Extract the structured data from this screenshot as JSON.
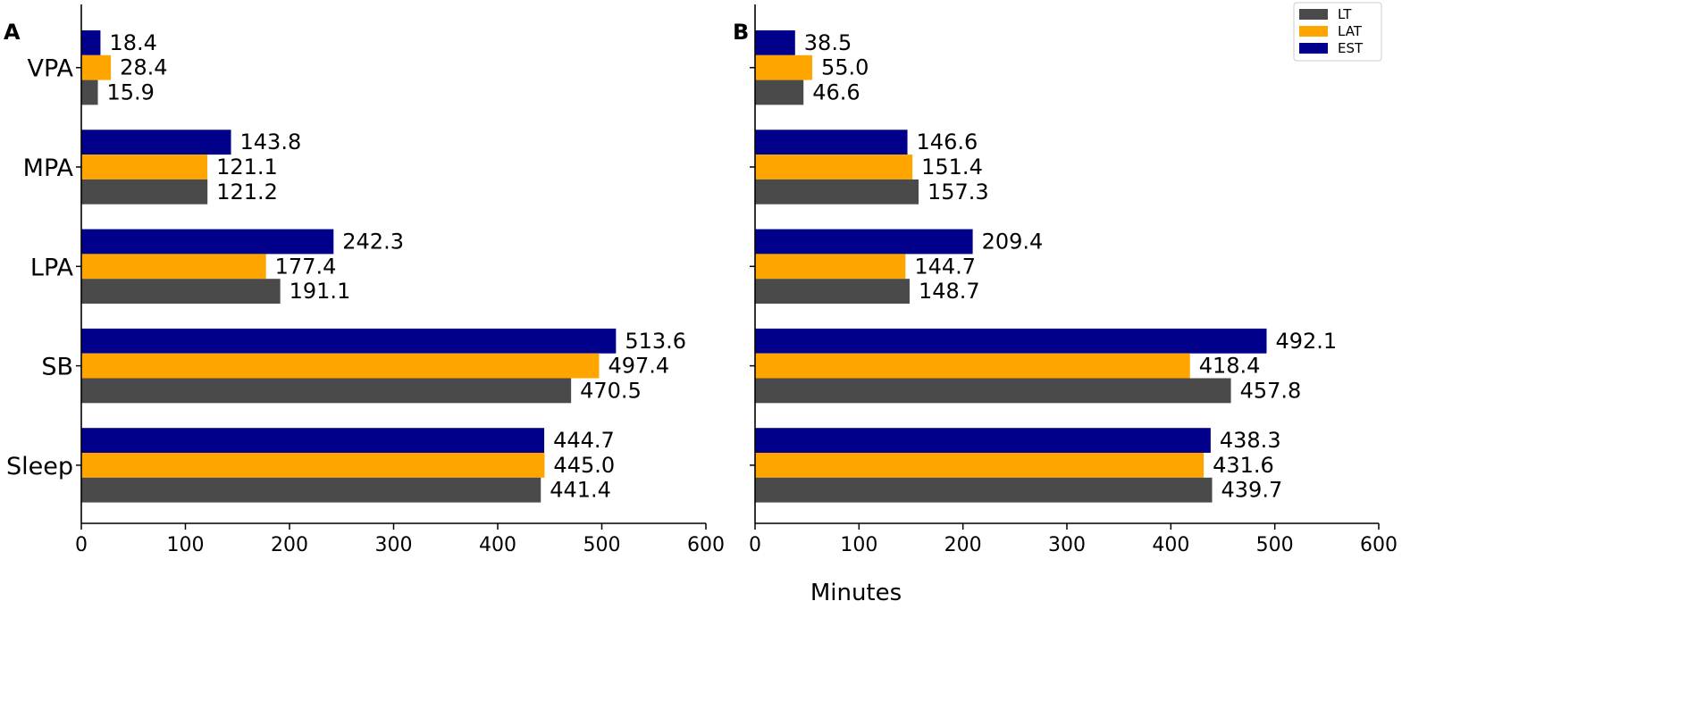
{
  "chart_data": {
    "type": "bar",
    "orientation": "horizontal",
    "xlabel": "Minutes",
    "xlim": [
      0,
      600
    ],
    "xticks": [
      "0",
      "100",
      "200",
      "300",
      "400",
      "500",
      "600"
    ],
    "categories": [
      "VPA",
      "MPA",
      "LPA",
      "SB",
      "Sleep"
    ],
    "legend": {
      "placement": "top-right",
      "entries": [
        {
          "name": "LT",
          "color": "#4a4a4a"
        },
        {
          "name": "LAT",
          "color": "#ffa500"
        },
        {
          "name": "EST",
          "color": "#00008b"
        }
      ]
    },
    "panels": [
      {
        "label": "A",
        "series": [
          {
            "name": "EST",
            "color": "#00008b",
            "values": [
              18.4,
              143.8,
              242.3,
              513.6,
              444.7
            ],
            "labels": [
              "18.4",
              "143.8",
              "242.3",
              "513.6",
              "444.7"
            ]
          },
          {
            "name": "LAT",
            "color": "#ffa500",
            "values": [
              28.4,
              121.1,
              177.4,
              497.4,
              445.0
            ],
            "labels": [
              "28.4",
              "121.1",
              "177.4",
              "497.4",
              "445.0"
            ]
          },
          {
            "name": "LT",
            "color": "#4a4a4a",
            "values": [
              15.9,
              121.2,
              191.1,
              470.5,
              441.4
            ],
            "labels": [
              "15.9",
              "121.2",
              "191.1",
              "470.5",
              "441.4"
            ]
          }
        ]
      },
      {
        "label": "B",
        "series": [
          {
            "name": "EST",
            "color": "#00008b",
            "values": [
              38.5,
              146.6,
              209.4,
              492.1,
              438.3
            ],
            "labels": [
              "38.5",
              "146.6",
              "209.4",
              "492.1",
              "438.3"
            ]
          },
          {
            "name": "LAT",
            "color": "#ffa500",
            "values": [
              55.0,
              151.4,
              144.7,
              418.4,
              431.6
            ],
            "labels": [
              "55.0",
              "151.4",
              "144.7",
              "418.4",
              "431.6"
            ]
          },
          {
            "name": "LT",
            "color": "#4a4a4a",
            "values": [
              46.6,
              157.3,
              148.7,
              457.8,
              439.7
            ],
            "labels": [
              "46.6",
              "157.3",
              "148.7",
              "457.8",
              "439.7"
            ]
          }
        ]
      }
    ]
  }
}
